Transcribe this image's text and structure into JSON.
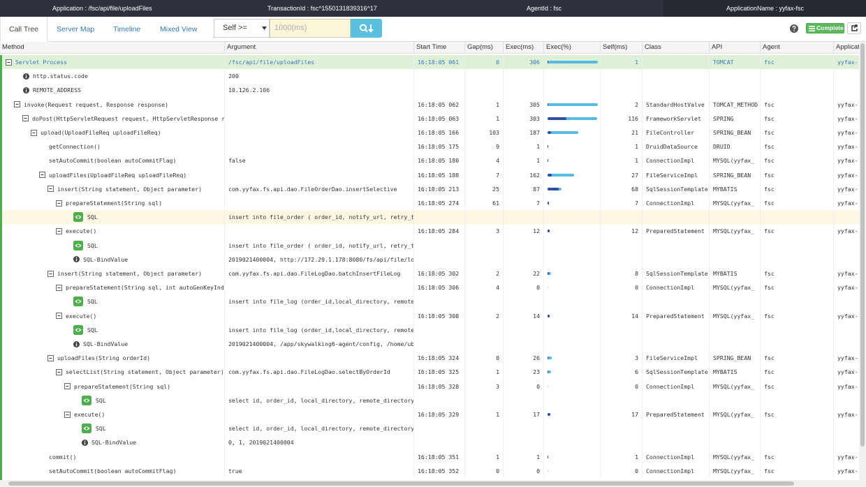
{
  "header": {
    "application": "Application : /fsc/api/file/uploadFiles",
    "transaction_id": "TransactionId : fsc^1550131839316^17",
    "agent_id": "AgentId : fsc",
    "application_name": "ApplicationName : yyfax-fsc"
  },
  "tabs": [
    "Call Tree",
    "Server Map",
    "Timeline",
    "Mixed View"
  ],
  "filter": {
    "select": "Self >=",
    "placeholder": "1000(ms)"
  },
  "buttons": {
    "complete": "Complete"
  },
  "table": {
    "columns": [
      "Method",
      "Argument",
      "Start Time",
      "Gap(ms)",
      "Exec(ms)",
      "Exec(%)",
      "Self(ms)",
      "Class",
      "API",
      "Agent",
      "Application"
    ],
    "rows": [
      {
        "method": "Servlet Process",
        "argument": "/fsc/api/file/uploadFiles",
        "start_time": "16:18:05 061",
        "gap": 0,
        "exec": 306,
        "exec_pct": 100,
        "self_pct": 0.3,
        "self": 1,
        "api": "TOMCAT",
        "agent": "fsc",
        "application": "yyfax-"
      },
      {
        "method": "http.status.code",
        "argument": "200"
      },
      {
        "method": "REMOTE_ADDRESS",
        "argument": "10.126.2.106"
      },
      {
        "method": "invoke(Request request, Response response)",
        "start_time": "16:18:05 062",
        "gap": 1,
        "exec": 305,
        "exec_pct": 99.7,
        "self_pct": 0.7,
        "self": 2,
        "class": "StandardHostValve",
        "api": "TOMCAT_METHOD",
        "agent": "fsc",
        "application": "yyfax-"
      },
      {
        "method": "doPost(HttpServletRequest request, HttpServletResponse re",
        "start_time": "16:18:05 063",
        "gap": 1,
        "exec": 303,
        "exec_pct": 99,
        "self_pct": 38,
        "self": 116,
        "class": "FrameworkServlet",
        "api": "SPRING",
        "agent": "fsc",
        "application": "yyfax-"
      },
      {
        "method": "upload(UploadFileReq uploadFileReq)",
        "start_time": "16:18:05 166",
        "gap": 103,
        "exec": 187,
        "exec_pct": 61,
        "self_pct": 7,
        "self": 21,
        "class": "FileController",
        "api": "SPRING_BEAN",
        "agent": "fsc",
        "application": "yyfax-"
      },
      {
        "method": "getConnection()",
        "start_time": "16:18:05 175",
        "gap": 9,
        "exec": 1,
        "exec_pct": 0.3,
        "self_pct": 0.3,
        "self": 1,
        "class": "DruidDataSource",
        "api": "DRUID",
        "agent": "fsc",
        "application": "yyfax-"
      },
      {
        "method": "setAutoCommit(boolean autoCommitFlag)",
        "argument": "false",
        "start_time": "16:18:05 180",
        "gap": 4,
        "exec": 1,
        "exec_pct": 0.3,
        "self_pct": 0.3,
        "self": 1,
        "class": "ConnectionImpl",
        "api": "MYSQL(yyfax_",
        "agent": "fsc",
        "application": "yyfax-"
      },
      {
        "method": "uploadFiles(UploadFileReq uploadFileReq)",
        "start_time": "16:18:05 188",
        "gap": 7,
        "exec": 162,
        "exec_pct": 53,
        "self_pct": 9,
        "self": 27,
        "class": "FileServiceImpl",
        "api": "SPRING_BEAN",
        "agent": "fsc",
        "application": "yyfax-"
      },
      {
        "method": "insert(String statement, Object parameter)",
        "argument": "com.yyfax.fs.api.dao.FileOrderDao.insertSelective",
        "start_time": "16:18:05 213",
        "gap": 25,
        "exec": 87,
        "exec_pct": 28,
        "self_pct": 22,
        "self": 68,
        "class": "SqlSessionTemplate",
        "api": "MYBATIS",
        "agent": "fsc",
        "application": "yyfax-"
      },
      {
        "method": "prepareStatement(String sql)",
        "start_time": "16:18:05 274",
        "gap": 61,
        "exec": 7,
        "exec_pct": 2.3,
        "self_pct": 2.3,
        "self": 7,
        "class": "ConnectionImpl",
        "api": "MYSQL(yyfax_",
        "agent": "fsc",
        "application": "yyfax-"
      },
      {
        "method": "SQL",
        "argument": "insert into file_order ( order_id, notify_url, retry_ti"
      },
      {
        "method": "execute()",
        "start_time": "16:18:05 284",
        "gap": 3,
        "exec": 12,
        "exec_pct": 3.9,
        "self_pct": 3.9,
        "self": 12,
        "class": "PreparedStatement",
        "api": "MYSQL(yyfax_",
        "agent": "fsc",
        "application": "yyfax-"
      },
      {
        "method": "SQL",
        "argument": "insert into file_order ( order_id, notify_url, retry_ti"
      },
      {
        "method": "SQL-BindValue",
        "argument": "2019021400004, http://172.29.1.178:8080/fs/api/file/lo"
      },
      {
        "method": "insert(String statement, Object parameter)",
        "argument": "com.yyfax.fs.api.dao.FileLogDao.batchInsertFileLog",
        "start_time": "16:18:05 302",
        "gap": 2,
        "exec": 22,
        "exec_pct": 7.2,
        "self_pct": 2.6,
        "self": 8,
        "class": "SqlSessionTemplate",
        "api": "MYBATIS",
        "agent": "fsc",
        "application": "yyfax-"
      },
      {
        "method": "prepareStatement(String sql, int autoGenKeyInde",
        "start_time": "16:18:05 306",
        "gap": 4,
        "exec": 0,
        "exec_pct": 0,
        "self_pct": 0,
        "self": 0,
        "class": "ConnectionImpl",
        "api": "MYSQL(yyfax_",
        "agent": "fsc",
        "application": "yyfax-"
      },
      {
        "method": "SQL",
        "argument": "insert into file_log (order_id,local_directory, remote_"
      },
      {
        "method": "execute()",
        "start_time": "16:18:05 308",
        "gap": 2,
        "exec": 14,
        "exec_pct": 4.6,
        "self_pct": 4.6,
        "self": 14,
        "class": "PreparedStatement",
        "api": "MYSQL(yyfax_",
        "agent": "fsc",
        "application": "yyfax-"
      },
      {
        "method": "SQL",
        "argument": "insert into file_log (order_id,local_directory, remote_"
      },
      {
        "method": "SQL-BindValue",
        "argument": "2019021400004, /app/skywalking6-agent/config, /home/ubu"
      },
      {
        "method": "uploadFiles(String orderId)",
        "start_time": "16:18:05 324",
        "gap": 0,
        "exec": 26,
        "exec_pct": 8.5,
        "self_pct": 1,
        "self": 3,
        "class": "FileServiceImpl",
        "api": "SPRING_BEAN",
        "agent": "fsc",
        "application": "yyfax-"
      },
      {
        "method": "selectList(String statement, Object parameter)",
        "argument": "com.yyfax.fs.api.dao.FileLogDao.selectByOrderId",
        "start_time": "16:18:05 325",
        "gap": 1,
        "exec": 23,
        "exec_pct": 7.5,
        "self_pct": 2,
        "self": 6,
        "class": "SqlSessionTemplate",
        "api": "MYBATIS",
        "agent": "fsc",
        "application": "yyfax-"
      },
      {
        "method": "prepareStatement(String sql)",
        "start_time": "16:18:05 328",
        "gap": 3,
        "exec": 0,
        "exec_pct": 0,
        "self_pct": 0,
        "self": 0,
        "class": "ConnectionImpl",
        "api": "MYSQL(yyfax_",
        "agent": "fsc",
        "application": "yyfax-"
      },
      {
        "method": "SQL",
        "argument": "select id, order_id, local_directory, remote_directory,"
      },
      {
        "method": "execute()",
        "start_time": "16:18:05 329",
        "gap": 1,
        "exec": 17,
        "exec_pct": 5.6,
        "self_pct": 5.6,
        "self": 17,
        "class": "PreparedStatement",
        "api": "MYSQL(yyfax_",
        "agent": "fsc",
        "application": "yyfax-"
      },
      {
        "method": "SQL",
        "argument": "select id, order_id, local_directory, remote_directory,"
      },
      {
        "method": "SQL-BindValue",
        "argument": "0, 1, 2019021400004"
      },
      {
        "method": "commit()",
        "start_time": "16:18:05 351",
        "gap": 1,
        "exec": 1,
        "exec_pct": 0.3,
        "self_pct": 0.3,
        "self": 1,
        "class": "ConnectionImpl",
        "api": "MYSQL(yyfax_",
        "agent": "fsc",
        "application": "yyfax-"
      },
      {
        "method": "setAutoCommit(boolean autoCommitFlag)",
        "argument": "true",
        "start_time": "16:18:05 352",
        "gap": 0,
        "exec": 0,
        "exec_pct": 0,
        "self_pct": 0,
        "self": 0,
        "class": "ConnectionImpl",
        "api": "MYSQL(yyfax_",
        "agent": "fsc",
        "application": "yyfax-"
      }
    ]
  }
}
